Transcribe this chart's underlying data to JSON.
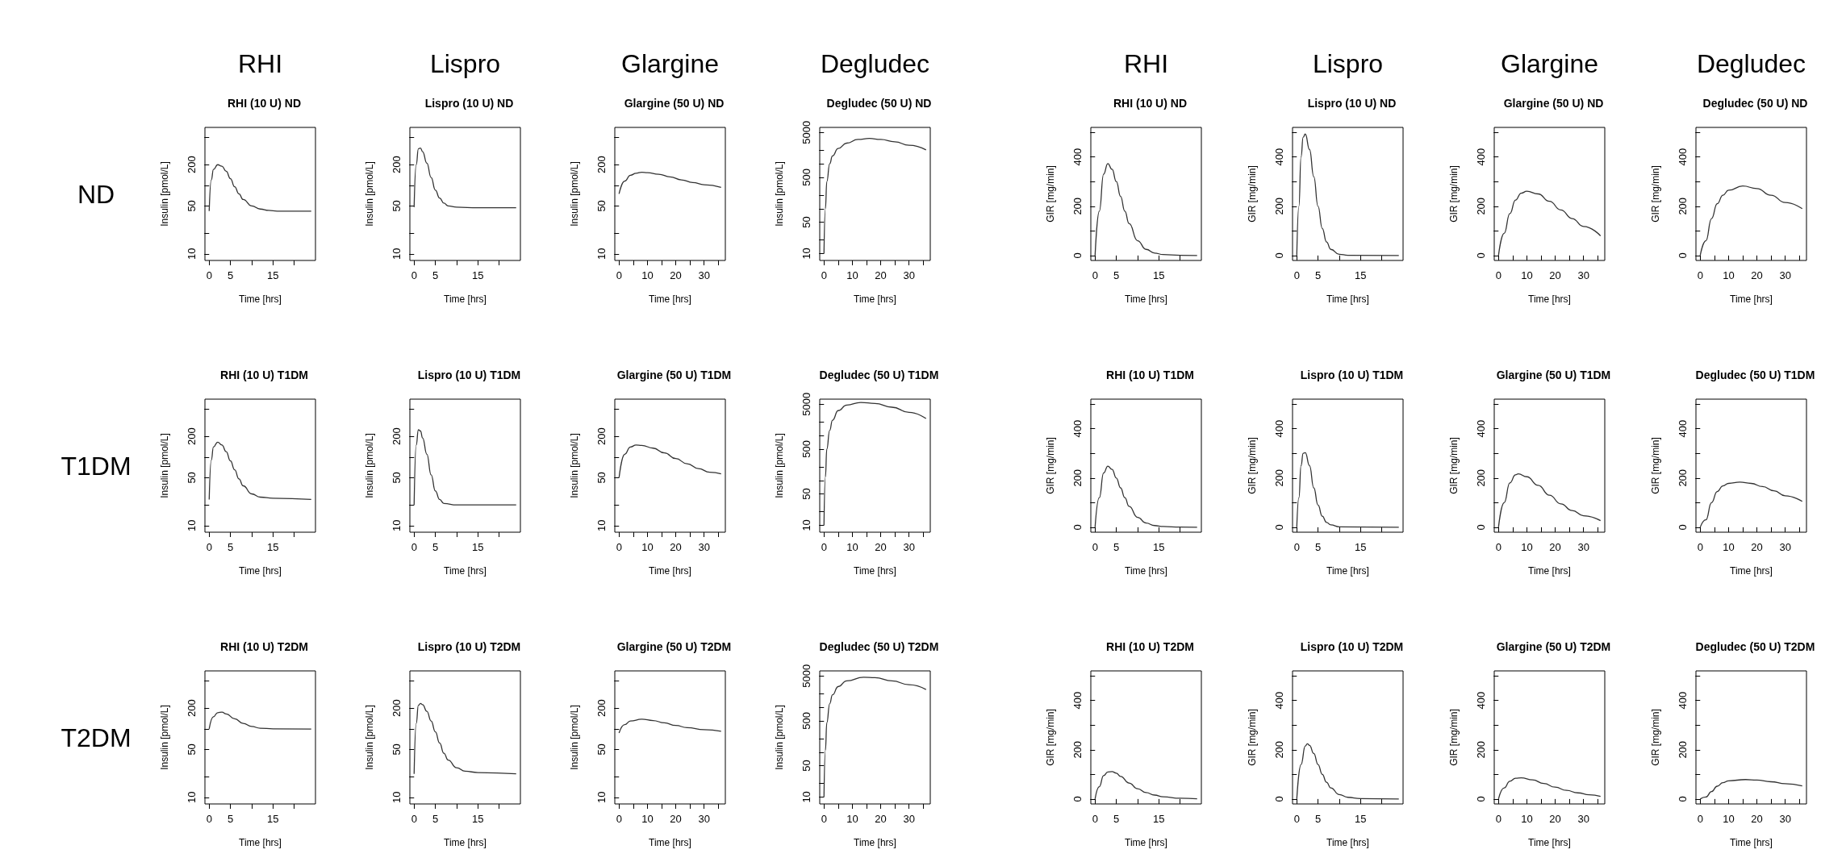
{
  "chart_data": [
    {
      "type": "line",
      "title": "RHI (10 U) ND",
      "annotations": [
        "RHI",
        "ND"
      ],
      "xlabel": "Time [hrs]",
      "ylabel": "Insulin [pmol/L]",
      "log": true,
      "color": "#333333",
      "xlim": [
        -1,
        25
      ],
      "xticks": [
        0,
        5,
        {
          "value": 10,
          "label": null
        },
        15,
        {
          "value": 20,
          "label": null
        }
      ],
      "ylim": [
        8,
        700
      ],
      "yticks": [
        10,
        {
          "value": 20,
          "label": null
        },
        50,
        {
          "value": 100,
          "label": null
        },
        200,
        {
          "value": 500,
          "label": null
        }
      ],
      "x": [
        0,
        0.5,
        1,
        2,
        3,
        4,
        5,
        6,
        7,
        8,
        10,
        12,
        14,
        16,
        20,
        24
      ],
      "values": [
        42,
        120,
        170,
        200,
        190,
        160,
        125,
        95,
        75,
        62,
        50,
        45,
        43,
        42,
        42,
        42
      ]
    },
    {
      "type": "line",
      "title": "Lispro (10 U) ND",
      "annotations": [
        "Lispro"
      ],
      "xlabel": "Time [hrs]",
      "ylabel": "Insulin [pmol/L]",
      "log": true,
      "color": "#333333",
      "xlim": [
        -1,
        25
      ],
      "xticks": [
        0,
        5,
        {
          "value": 10,
          "label": null
        },
        15,
        {
          "value": 20,
          "label": null
        }
      ],
      "ylim": [
        8,
        700
      ],
      "yticks": [
        10,
        {
          "value": 20,
          "label": null
        },
        50,
        {
          "value": 100,
          "label": null
        },
        200,
        {
          "value": 500,
          "label": null
        }
      ],
      "x": [
        0,
        0.5,
        1,
        1.5,
        2,
        3,
        4,
        5,
        6,
        7,
        8,
        10,
        15,
        24
      ],
      "values": [
        48,
        200,
        340,
        350,
        310,
        210,
        130,
        85,
        65,
        55,
        50,
        48,
        47,
        47
      ]
    },
    {
      "type": "line",
      "title": "Glargine (50 U) ND",
      "annotations": [
        "Glargine"
      ],
      "xlabel": "Time [hrs]",
      "ylabel": "Insulin [pmol/L]",
      "log": true,
      "color": "#333333",
      "xlim": [
        -1.5,
        37.5
      ],
      "xticks": [
        0,
        {
          "value": 5,
          "label": null
        },
        10,
        {
          "value": 15,
          "label": null
        },
        20,
        {
          "value": 25,
          "label": null
        },
        30,
        {
          "value": 35,
          "label": null
        }
      ],
      "ylim": [
        8,
        700
      ],
      "yticks": [
        10,
        {
          "value": 20,
          "label": null
        },
        50,
        {
          "value": 100,
          "label": null
        },
        200,
        {
          "value": 500,
          "label": null
        }
      ],
      "x": [
        0,
        2,
        4,
        6,
        8,
        10,
        14,
        18,
        22,
        26,
        30,
        36
      ],
      "values": [
        75,
        115,
        140,
        150,
        155,
        153,
        145,
        133,
        120,
        110,
        102,
        93
      ]
    },
    {
      "type": "line",
      "title": "Degludec (50 U) ND",
      "annotations": [
        "Degludec"
      ],
      "xlabel": "Time [hrs]",
      "ylabel": "Insulin [pmol/L]",
      "log": true,
      "color": "#333333",
      "xlim": [
        -1.5,
        37.5
      ],
      "xticks": [
        0,
        {
          "value": 5,
          "label": null
        },
        10,
        {
          "value": 15,
          "label": null
        },
        20,
        {
          "value": 25,
          "label": null
        },
        30,
        {
          "value": 35,
          "label": null
        }
      ],
      "ylim": [
        7,
        6500
      ],
      "yticks": [
        10,
        {
          "value": 20,
          "label": null
        },
        50,
        {
          "value": 100,
          "label": null
        },
        {
          "value": 200,
          "label": null
        },
        500,
        {
          "value": 1000,
          "label": null
        },
        {
          "value": 2000,
          "label": null
        },
        5000
      ],
      "x": [
        0,
        0.5,
        1,
        2,
        3,
        5,
        8,
        12,
        16,
        20,
        25,
        30,
        36
      ],
      "values": [
        10,
        100,
        400,
        1000,
        1500,
        2200,
        2900,
        3500,
        3700,
        3500,
        3100,
        2600,
        2050
      ]
    },
    {
      "type": "line",
      "title": "RHI (10 U) ND",
      "annotations": [
        "RHI"
      ],
      "xlabel": "Time [hrs]",
      "ylabel": "GIR [mg/min]",
      "color": "#333333",
      "xlim": [
        -1,
        25
      ],
      "xticks": [
        0,
        5,
        {
          "value": 10,
          "label": null
        },
        15,
        {
          "value": 20,
          "label": null
        }
      ],
      "ylim": [
        -20,
        520
      ],
      "yticks": [
        0,
        {
          "value": 100,
          "label": null
        },
        200,
        {
          "value": 300,
          "label": null
        },
        400,
        {
          "value": 500,
          "label": null
        }
      ],
      "x": [
        0,
        1,
        2,
        3,
        4,
        5,
        6,
        7,
        8,
        10,
        12,
        14,
        16,
        20,
        24
      ],
      "values": [
        0,
        180,
        330,
        373,
        350,
        300,
        240,
        180,
        130,
        60,
        25,
        10,
        4,
        1,
        0
      ]
    },
    {
      "type": "line",
      "title": "Lispro (10 U) ND",
      "annotations": [
        "Lispro"
      ],
      "xlabel": "Time [hrs]",
      "ylabel": "GIR [mg/min]",
      "color": "#333333",
      "xlim": [
        -1,
        25
      ],
      "xticks": [
        0,
        5,
        {
          "value": 10,
          "label": null
        },
        15,
        {
          "value": 20,
          "label": null
        }
      ],
      "ylim": [
        -20,
        520
      ],
      "yticks": [
        0,
        {
          "value": 100,
          "label": null
        },
        200,
        {
          "value": 300,
          "label": null
        },
        400,
        {
          "value": 500,
          "label": null
        }
      ],
      "x": [
        0,
        0.5,
        1,
        1.5,
        2,
        3,
        4,
        5,
        6,
        7,
        8,
        10,
        12,
        24
      ],
      "values": [
        0,
        200,
        400,
        480,
        493,
        430,
        320,
        200,
        110,
        55,
        25,
        5,
        1,
        0
      ]
    },
    {
      "type": "line",
      "title": "Glargine (50 U) ND",
      "annotations": [
        "Glargine"
      ],
      "xlabel": "Time [hrs]",
      "ylabel": "GIR [mg/min]",
      "color": "#333333",
      "xlim": [
        -1.5,
        37.5
      ],
      "xticks": [
        0,
        {
          "value": 5,
          "label": null
        },
        10,
        {
          "value": 15,
          "label": null
        },
        20,
        {
          "value": 25,
          "label": null
        },
        30,
        {
          "value": 35,
          "label": null
        }
      ],
      "ylim": [
        -20,
        520
      ],
      "yticks": [
        0,
        {
          "value": 100,
          "label": null
        },
        200,
        {
          "value": 300,
          "label": null
        },
        400,
        {
          "value": 500,
          "label": null
        }
      ],
      "x": [
        0,
        2,
        4,
        6,
        8,
        10,
        14,
        18,
        22,
        26,
        30,
        36
      ],
      "values": [
        0,
        90,
        170,
        225,
        253,
        261,
        250,
        220,
        185,
        150,
        118,
        80
      ]
    },
    {
      "type": "line",
      "title": "Degludec (50 U) ND",
      "annotations": [
        "Degludec"
      ],
      "xlabel": "Time [hrs]",
      "ylabel": "GIR [mg/min]",
      "color": "#333333",
      "xlim": [
        -1.5,
        37.5
      ],
      "xticks": [
        0,
        {
          "value": 5,
          "label": null
        },
        10,
        {
          "value": 15,
          "label": null
        },
        20,
        {
          "value": 25,
          "label": null
        },
        30,
        {
          "value": 35,
          "label": null
        }
      ],
      "ylim": [
        -20,
        520
      ],
      "yticks": [
        0,
        {
          "value": 100,
          "label": null
        },
        200,
        {
          "value": 300,
          "label": null
        },
        400,
        {
          "value": 500,
          "label": null
        }
      ],
      "x": [
        0,
        2,
        4,
        6,
        8,
        10,
        15,
        20,
        25,
        30,
        36
      ],
      "values": [
        0,
        60,
        150,
        210,
        245,
        265,
        282,
        272,
        245,
        215,
        190
      ]
    },
    {
      "type": "line",
      "title": "RHI (10 U) T1DM",
      "annotations": [
        "T1DM"
      ],
      "xlabel": "Time [hrs]",
      "ylabel": "Insulin [pmol/L]",
      "log": true,
      "color": "#333333",
      "xlim": [
        -1,
        25
      ],
      "xticks": [
        0,
        5,
        {
          "value": 10,
          "label": null
        },
        15,
        {
          "value": 20,
          "label": null
        }
      ],
      "ylim": [
        8,
        700
      ],
      "yticks": [
        10,
        {
          "value": 20,
          "label": null
        },
        50,
        {
          "value": 100,
          "label": null
        },
        200,
        {
          "value": 500,
          "label": null
        }
      ],
      "x": [
        0,
        0.5,
        1,
        2,
        3,
        4,
        5,
        6,
        7,
        8,
        10,
        12,
        15,
        24
      ],
      "values": [
        24,
        90,
        140,
        165,
        150,
        120,
        88,
        65,
        48,
        38,
        29,
        26,
        25,
        24
      ]
    },
    {
      "type": "line",
      "title": "Lispro (10 U) T1DM",
      "xlabel": "Time [hrs]",
      "ylabel": "Insulin [pmol/L]",
      "log": true,
      "color": "#333333",
      "xlim": [
        -1,
        25
      ],
      "xticks": [
        0,
        5,
        {
          "value": 10,
          "label": null
        },
        15,
        {
          "value": 20,
          "label": null
        }
      ],
      "ylim": [
        8,
        700
      ],
      "yticks": [
        10,
        {
          "value": 20,
          "label": null
        },
        50,
        {
          "value": 100,
          "label": null
        },
        200,
        {
          "value": 500,
          "label": null
        }
      ],
      "x": [
        0,
        0.5,
        1,
        1.5,
        2,
        3,
        4,
        5,
        6,
        7,
        10,
        24
      ],
      "values": [
        20,
        150,
        250,
        240,
        190,
        110,
        55,
        32,
        24,
        21,
        20,
        20
      ]
    },
    {
      "type": "line",
      "title": "Glargine (50 U) T1DM",
      "xlabel": "Time [hrs]",
      "ylabel": "Insulin [pmol/L]",
      "log": true,
      "color": "#333333",
      "xlim": [
        -1.5,
        37.5
      ],
      "xticks": [
        0,
        {
          "value": 5,
          "label": null
        },
        10,
        {
          "value": 15,
          "label": null
        },
        20,
        {
          "value": 25,
          "label": null
        },
        30,
        {
          "value": 35,
          "label": null
        }
      ],
      "ylim": [
        8,
        700
      ],
      "yticks": [
        10,
        {
          "value": 20,
          "label": null
        },
        50,
        {
          "value": 100,
          "label": null
        },
        200,
        {
          "value": 500,
          "label": null
        }
      ],
      "x": [
        0,
        2,
        4,
        6,
        8,
        12,
        16,
        20,
        24,
        28,
        32,
        36
      ],
      "values": [
        50,
        110,
        140,
        150,
        148,
        135,
        115,
        95,
        80,
        68,
        60,
        57
      ]
    },
    {
      "type": "line",
      "title": "Degludec (50 U) T1DM",
      "xlabel": "Time [hrs]",
      "ylabel": "Insulin [pmol/L]",
      "log": true,
      "color": "#333333",
      "xlim": [
        -1.5,
        37.5
      ],
      "xticks": [
        0,
        {
          "value": 5,
          "label": null
        },
        10,
        {
          "value": 15,
          "label": null
        },
        20,
        {
          "value": 25,
          "label": null
        },
        30,
        {
          "value": 35,
          "label": null
        }
      ],
      "ylim": [
        7,
        6500
      ],
      "yticks": [
        10,
        {
          "value": 20,
          "label": null
        },
        50,
        {
          "value": 100,
          "label": null
        },
        {
          "value": 200,
          "label": null
        },
        500,
        {
          "value": 1000,
          "label": null
        },
        {
          "value": 2000,
          "label": null
        },
        5000
      ],
      "x": [
        0,
        0.5,
        1,
        2,
        3,
        5,
        8,
        13,
        18,
        24,
        30,
        36
      ],
      "values": [
        10,
        120,
        500,
        1300,
        2200,
        3600,
        4800,
        5500,
        5200,
        4300,
        3300,
        2400
      ]
    },
    {
      "type": "line",
      "title": "RHI (10 U) T1DM",
      "xlabel": "Time [hrs]",
      "ylabel": "GIR [mg/min]",
      "color": "#333333",
      "xlim": [
        -1,
        25
      ],
      "xticks": [
        0,
        5,
        {
          "value": 10,
          "label": null
        },
        15,
        {
          "value": 20,
          "label": null
        }
      ],
      "ylim": [
        -20,
        520
      ],
      "yticks": [
        0,
        {
          "value": 100,
          "label": null
        },
        200,
        {
          "value": 300,
          "label": null
        },
        400,
        {
          "value": 500,
          "label": null
        }
      ],
      "x": [
        0,
        1,
        2,
        3,
        4,
        5,
        6,
        7,
        8,
        10,
        12,
        14,
        16,
        20,
        24
      ],
      "values": [
        0,
        120,
        220,
        248,
        235,
        200,
        160,
        120,
        85,
        40,
        17,
        7,
        3,
        1,
        0
      ]
    },
    {
      "type": "line",
      "title": "Lispro (10 U) T1DM",
      "xlabel": "Time [hrs]",
      "ylabel": "GIR [mg/min]",
      "color": "#333333",
      "xlim": [
        -1,
        25
      ],
      "xticks": [
        0,
        5,
        {
          "value": 10,
          "label": null
        },
        15,
        {
          "value": 20,
          "label": null
        }
      ],
      "ylim": [
        -20,
        520
      ],
      "yticks": [
        0,
        {
          "value": 100,
          "label": null
        },
        200,
        {
          "value": 300,
          "label": null
        },
        400,
        {
          "value": 500,
          "label": null
        }
      ],
      "x": [
        0,
        0.5,
        1,
        1.5,
        2,
        3,
        4,
        5,
        6,
        7,
        8,
        10,
        24
      ],
      "values": [
        0,
        120,
        250,
        300,
        303,
        250,
        160,
        90,
        45,
        20,
        10,
        2,
        0
      ]
    },
    {
      "type": "line",
      "title": "Glargine (50 U) T1DM",
      "xlabel": "Time [hrs]",
      "ylabel": "GIR [mg/min]",
      "color": "#333333",
      "xlim": [
        -1.5,
        37.5
      ],
      "xticks": [
        0,
        {
          "value": 5,
          "label": null
        },
        10,
        {
          "value": 15,
          "label": null
        },
        20,
        {
          "value": 25,
          "label": null
        },
        30,
        {
          "value": 35,
          "label": null
        }
      ],
      "ylim": [
        -20,
        520
      ],
      "yticks": [
        0,
        {
          "value": 100,
          "label": null
        },
        200,
        {
          "value": 300,
          "label": null
        },
        400,
        {
          "value": 500,
          "label": null
        }
      ],
      "x": [
        0,
        2,
        4,
        6,
        7,
        10,
        14,
        18,
        22,
        26,
        30,
        36
      ],
      "values": [
        0,
        100,
        180,
        213,
        217,
        205,
        170,
        130,
        95,
        68,
        47,
        27
      ]
    },
    {
      "type": "line",
      "title": "Degludec (50 U) T1DM",
      "xlabel": "Time [hrs]",
      "ylabel": "GIR [mg/min]",
      "color": "#333333",
      "xlim": [
        -1.5,
        37.5
      ],
      "xticks": [
        0,
        {
          "value": 5,
          "label": null
        },
        10,
        {
          "value": 15,
          "label": null
        },
        20,
        {
          "value": 25,
          "label": null
        },
        30,
        {
          "value": 35,
          "label": null
        }
      ],
      "ylim": [
        -20,
        520
      ],
      "yticks": [
        0,
        {
          "value": 100,
          "label": null
        },
        200,
        {
          "value": 300,
          "label": null
        },
        400,
        {
          "value": 500,
          "label": null
        }
      ],
      "x": [
        0,
        2,
        4,
        6,
        8,
        10,
        14,
        18,
        22,
        26,
        30,
        36
      ],
      "values": [
        0,
        30,
        100,
        145,
        168,
        178,
        183,
        178,
        165,
        148,
        128,
        105
      ]
    },
    {
      "type": "line",
      "title": "RHI (10 U) T2DM",
      "annotations": [
        "T2DM"
      ],
      "xlabel": "Time [hrs]",
      "ylabel": "Insulin [pmol/L]",
      "log": true,
      "color": "#333333",
      "xlim": [
        -1,
        25
      ],
      "xticks": [
        0,
        5,
        {
          "value": 10,
          "label": null
        },
        15,
        {
          "value": 20,
          "label": null
        }
      ],
      "ylim": [
        8,
        700
      ],
      "yticks": [
        10,
        {
          "value": 20,
          "label": null
        },
        50,
        {
          "value": 100,
          "label": null
        },
        200,
        {
          "value": 500,
          "label": null
        }
      ],
      "x": [
        0,
        1,
        2,
        3,
        4,
        6,
        8,
        10,
        12,
        15,
        24
      ],
      "values": [
        100,
        150,
        172,
        175,
        165,
        140,
        120,
        108,
        102,
        100,
        99
      ]
    },
    {
      "type": "line",
      "title": "Lispro (10 U) T2DM",
      "xlabel": "Time [hrs]",
      "ylabel": "Insulin [pmol/L]",
      "log": true,
      "color": "#333333",
      "xlim": [
        -1,
        25
      ],
      "xticks": [
        0,
        5,
        {
          "value": 10,
          "label": null
        },
        15,
        {
          "value": 20,
          "label": null
        }
      ],
      "ylim": [
        8,
        700
      ],
      "yticks": [
        10,
        {
          "value": 20,
          "label": null
        },
        50,
        {
          "value": 100,
          "label": null
        },
        200,
        {
          "value": 500,
          "label": null
        }
      ],
      "x": [
        0,
        0.5,
        1,
        1.5,
        2,
        3,
        4,
        5,
        6,
        7,
        8,
        10,
        12,
        15,
        24
      ],
      "values": [
        22,
        120,
        220,
        235,
        225,
        180,
        130,
        90,
        62,
        44,
        35,
        27,
        24,
        23,
        22
      ]
    },
    {
      "type": "line",
      "title": "Glargine (50 U) T2DM",
      "xlabel": "Time [hrs]",
      "ylabel": "Insulin [pmol/L]",
      "log": true,
      "color": "#333333",
      "xlim": [
        -1.5,
        37.5
      ],
      "xticks": [
        0,
        {
          "value": 5,
          "label": null
        },
        10,
        {
          "value": 15,
          "label": null
        },
        20,
        {
          "value": 25,
          "label": null
        },
        30,
        {
          "value": 35,
          "label": null
        }
      ],
      "ylim": [
        8,
        700
      ],
      "yticks": [
        10,
        {
          "value": 20,
          "label": null
        },
        50,
        {
          "value": 100,
          "label": null
        },
        200,
        {
          "value": 500,
          "label": null
        }
      ],
      "x": [
        0,
        2,
        4,
        8,
        12,
        16,
        20,
        24,
        30,
        36
      ],
      "values": [
        87,
        115,
        130,
        138,
        132,
        122,
        112,
        104,
        97,
        92
      ]
    },
    {
      "type": "line",
      "title": "Degludec (50 U) T2DM",
      "xlabel": "Time [hrs]",
      "ylabel": "Insulin [pmol/L]",
      "log": true,
      "color": "#333333",
      "xlim": [
        -1.5,
        37.5
      ],
      "xticks": [
        0,
        {
          "value": 5,
          "label": null
        },
        10,
        {
          "value": 15,
          "label": null
        },
        20,
        {
          "value": 25,
          "label": null
        },
        30,
        {
          "value": 35,
          "label": null
        }
      ],
      "ylim": [
        7,
        6500
      ],
      "yticks": [
        10,
        {
          "value": 20,
          "label": null
        },
        50,
        {
          "value": 100,
          "label": null
        },
        {
          "value": 200,
          "label": null
        },
        500,
        {
          "value": 1000,
          "label": null
        },
        {
          "value": 2000,
          "label": null
        },
        5000
      ],
      "x": [
        0,
        0.5,
        1,
        2,
        3,
        5,
        8,
        14,
        18,
        24,
        30,
        36
      ],
      "values": [
        10,
        110,
        450,
        1200,
        1900,
        2900,
        3900,
        4700,
        4600,
        3900,
        3200,
        2500
      ]
    },
    {
      "type": "line",
      "title": "RHI (10 U) T2DM",
      "xlabel": "Time [hrs]",
      "ylabel": "GIR [mg/min]",
      "color": "#333333",
      "xlim": [
        -1,
        25
      ],
      "xticks": [
        0,
        5,
        {
          "value": 10,
          "label": null
        },
        15,
        {
          "value": 20,
          "label": null
        }
      ],
      "ylim": [
        -20,
        520
      ],
      "yticks": [
        0,
        {
          "value": 100,
          "label": null
        },
        200,
        {
          "value": 300,
          "label": null
        },
        400,
        {
          "value": 500,
          "label": null
        }
      ],
      "x": [
        0,
        1,
        2,
        3,
        4,
        5,
        6,
        8,
        10,
        12,
        14,
        16,
        20,
        24
      ],
      "values": [
        0,
        50,
        95,
        110,
        111,
        105,
        92,
        65,
        42,
        26,
        16,
        9,
        3,
        1
      ]
    },
    {
      "type": "line",
      "title": "Lispro (10 U) T2DM",
      "xlabel": "Time [hrs]",
      "ylabel": "GIR [mg/min]",
      "color": "#333333",
      "xlim": [
        -1,
        25
      ],
      "xticks": [
        0,
        5,
        {
          "value": 10,
          "label": null
        },
        15,
        {
          "value": 20,
          "label": null
        }
      ],
      "ylim": [
        -20,
        520
      ],
      "yticks": [
        0,
        {
          "value": 100,
          "label": null
        },
        200,
        {
          "value": 300,
          "label": null
        },
        400,
        {
          "value": 500,
          "label": null
        }
      ],
      "x": [
        0,
        1,
        2,
        2.5,
        3,
        4,
        5,
        6,
        7,
        8,
        10,
        12,
        15,
        24
      ],
      "values": [
        0,
        140,
        215,
        224,
        218,
        185,
        140,
        100,
        68,
        45,
        18,
        7,
        2,
        0
      ]
    },
    {
      "type": "line",
      "title": "Glargine (50 U) T2DM",
      "xlabel": "Time [hrs]",
      "ylabel": "GIR [mg/min]",
      "color": "#333333",
      "xlim": [
        -1.5,
        37.5
      ],
      "xticks": [
        0,
        {
          "value": 5,
          "label": null
        },
        10,
        {
          "value": 15,
          "label": null
        },
        20,
        {
          "value": 25,
          "label": null
        },
        30,
        {
          "value": 35,
          "label": null
        }
      ],
      "ylim": [
        -20,
        520
      ],
      "yticks": [
        0,
        {
          "value": 100,
          "label": null
        },
        200,
        {
          "value": 300,
          "label": null
        },
        400,
        {
          "value": 500,
          "label": null
        }
      ],
      "x": [
        0,
        2,
        4,
        6,
        8,
        12,
        16,
        20,
        24,
        28,
        32,
        36
      ],
      "values": [
        0,
        45,
        72,
        84,
        86,
        78,
        63,
        48,
        35,
        25,
        17,
        11
      ]
    },
    {
      "type": "line",
      "title": "Degludec (50 U) T2DM",
      "xlabel": "Time [hrs]",
      "ylabel": "GIR [mg/min]",
      "color": "#333333",
      "xlim": [
        -1.5,
        37.5
      ],
      "xticks": [
        0,
        {
          "value": 5,
          "label": null
        },
        10,
        {
          "value": 15,
          "label": null
        },
        20,
        {
          "value": 25,
          "label": null
        },
        30,
        {
          "value": 35,
          "label": null
        }
      ],
      "ylim": [
        -20,
        520
      ],
      "yticks": [
        0,
        {
          "value": 100,
          "label": null
        },
        200,
        {
          "value": 300,
          "label": null
        },
        400,
        {
          "value": 500,
          "label": null
        }
      ],
      "x": [
        0,
        2,
        4,
        6,
        8,
        10,
        16,
        20,
        25,
        30,
        36
      ],
      "values": [
        0,
        8,
        30,
        52,
        66,
        74,
        79,
        77,
        70,
        62,
        53
      ]
    }
  ]
}
